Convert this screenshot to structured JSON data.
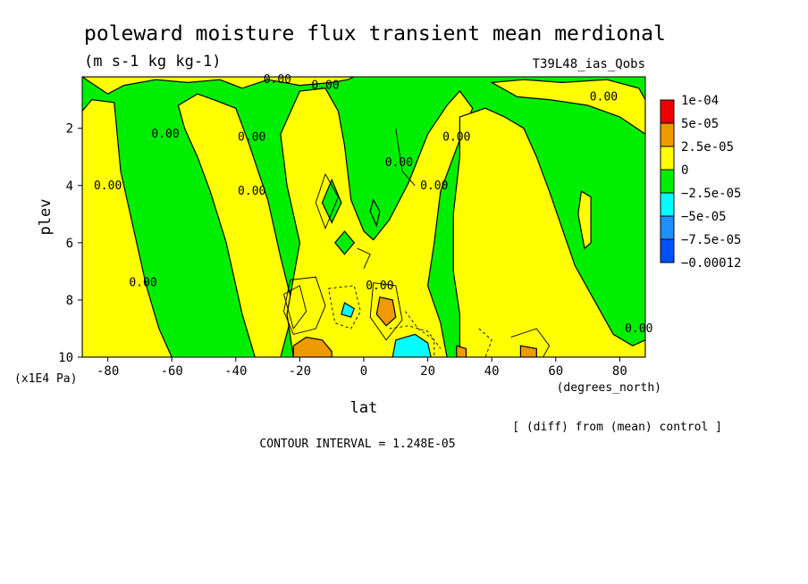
{
  "chart_data": {
    "type": "heatmap",
    "title": "poleward moisture flux transient mean merdional",
    "units_label": "(m s-1 kg kg-1)",
    "run_label": "T39L48_ias_Qobs",
    "xlabel": "lat",
    "x_units": "(degrees_north)",
    "ylabel": "plev",
    "y_units": "(x1E4 Pa)",
    "xlim": [
      -88,
      88
    ],
    "ylim": [
      10,
      0.2
    ],
    "x_ticks": [
      "-80",
      "-60",
      "-40",
      "-20",
      "0",
      "20",
      "40",
      "60",
      "80"
    ],
    "x_tick_values": [
      -80,
      -60,
      -40,
      -20,
      0,
      20,
      40,
      60,
      80
    ],
    "y_ticks": [
      "2",
      "4",
      "6",
      "8",
      "10"
    ],
    "y_tick_values": [
      2,
      4,
      6,
      8,
      10
    ],
    "legend": {
      "placement": "right",
      "labels": [
        "1e-04",
        "5e-05",
        "2.5e-05",
        "0",
        "−2.5e-05",
        "−5e-05",
        "−7.5e-05",
        "−0.00012"
      ],
      "colors": [
        "#ee0000",
        "#ee9a00",
        "#ffff00",
        "#00ee00",
        "#00ffff",
        "#1e90ff",
        "#0050ff"
      ]
    },
    "contour_labels": [
      "0.00",
      "0.00",
      "0.00",
      "0.00",
      "0.00",
      "0.00",
      "0.00",
      "0.00",
      "0.00",
      "0.00",
      "0.00",
      "0.00",
      "0.00"
    ],
    "footnote": "[ (diff) from (mean) control ]",
    "contour_interval": "CONTOUR INTERVAL = 1.248E-05",
    "regions": [
      {
        "kind": "positive",
        "level": "0 to 2.5e-05",
        "color": "#ffff00",
        "points": [
          [
            -88,
            0.2
          ],
          [
            -80,
            0.8
          ],
          [
            -75,
            0.5
          ],
          [
            -65,
            0.3
          ],
          [
            -55,
            0.4
          ],
          [
            -45,
            0.3
          ],
          [
            -38,
            0.6
          ],
          [
            -30,
            0.3
          ],
          [
            -20,
            0.5
          ],
          [
            -10,
            0.4
          ],
          [
            -5,
            0.3
          ],
          [
            -3,
            0.2
          ]
        ]
      },
      {
        "kind": "positive",
        "level": "0 to 2.5e-05",
        "color": "#ffff00",
        "points": [
          [
            -88,
            1.4
          ],
          [
            -85,
            1.0
          ],
          [
            -78,
            1.1
          ],
          [
            -76,
            3.5
          ],
          [
            -72,
            5.5
          ],
          [
            -68,
            7.5
          ],
          [
            -64,
            9.0
          ],
          [
            -60,
            10.0
          ],
          [
            -88,
            10.0
          ]
        ]
      },
      {
        "kind": "positive",
        "level": "0 to 2.5e-05",
        "color": "#ffff00",
        "points": [
          [
            -58,
            1.2
          ],
          [
            -52,
            0.8
          ],
          [
            -47,
            1.0
          ],
          [
            -40,
            1.3
          ],
          [
            -36,
            2.5
          ],
          [
            -30,
            4.5
          ],
          [
            -26,
            6.5
          ],
          [
            -22,
            8.3
          ],
          [
            -26,
            10.0
          ],
          [
            -34,
            10.0
          ],
          [
            -38,
            8.5
          ],
          [
            -43,
            6.0
          ],
          [
            -48,
            4.2
          ],
          [
            -52,
            3.0
          ],
          [
            -56,
            2.0
          ]
        ]
      },
      {
        "kind": "positive",
        "level": "0 to 2.5e-05",
        "color": "#ffff00",
        "points": [
          [
            -20,
            0.7
          ],
          [
            -12,
            0.6
          ],
          [
            -8,
            1.4
          ],
          [
            -6,
            2.6
          ],
          [
            -4,
            4.5
          ],
          [
            0,
            5.6
          ],
          [
            3,
            5.9
          ],
          [
            8,
            5.2
          ],
          [
            14,
            3.9
          ],
          [
            20,
            2.2
          ],
          [
            26,
            1.2
          ],
          [
            30,
            0.7
          ],
          [
            34,
            1.3
          ],
          [
            30,
            2.4
          ],
          [
            24,
            4.2
          ],
          [
            22,
            6.0
          ],
          [
            20,
            7.5
          ],
          [
            24,
            8.8
          ],
          [
            26,
            10.0
          ],
          [
            -22,
            10.0
          ],
          [
            -24,
            8.5
          ],
          [
            -20,
            6.0
          ],
          [
            -24,
            4.0
          ],
          [
            -26,
            2.2
          ],
          [
            -22,
            1.2
          ]
        ]
      },
      {
        "kind": "positive",
        "level": "0 to 2.5e-05",
        "color": "#ffff00",
        "points": [
          [
            30,
            1.6
          ],
          [
            38,
            1.3
          ],
          [
            44,
            1.6
          ],
          [
            50,
            2.0
          ],
          [
            54,
            3.0
          ],
          [
            58,
            4.2
          ],
          [
            62,
            5.5
          ],
          [
            66,
            6.8
          ],
          [
            72,
            8.0
          ],
          [
            78,
            9.2
          ],
          [
            84,
            9.6
          ],
          [
            88,
            9.4
          ],
          [
            88,
            10.0
          ],
          [
            30,
            10.0
          ],
          [
            30,
            8.5
          ],
          [
            28,
            7.0
          ],
          [
            28,
            5.0
          ],
          [
            30,
            3.0
          ]
        ]
      },
      {
        "kind": "positive",
        "level": "0 to 2.5e-05",
        "color": "#ffff00",
        "points": [
          [
            40,
            0.4
          ],
          [
            50,
            0.3
          ],
          [
            62,
            0.4
          ],
          [
            76,
            0.3
          ],
          [
            86,
            0.6
          ],
          [
            88,
            1.0
          ],
          [
            88,
            2.2
          ],
          [
            80,
            1.6
          ],
          [
            70,
            1.2
          ],
          [
            58,
            1.0
          ],
          [
            48,
            0.9
          ]
        ]
      },
      {
        "kind": "positive",
        "level": "0 to 2.5e-05",
        "color": "#ffff00",
        "points": [
          [
            68,
            4.2
          ],
          [
            71,
            4.4
          ],
          [
            71,
            6.0
          ],
          [
            69,
            6.2
          ],
          [
            67,
            5.0
          ]
        ]
      },
      {
        "kind": "negative",
        "level": "-2.5e-05 to 0",
        "color": "#00ee00",
        "points": [
          [
            -10,
            3.8
          ],
          [
            -7,
            4.6
          ],
          [
            -10,
            5.3
          ],
          [
            -13,
            4.6
          ]
        ]
      },
      {
        "kind": "negative",
        "level": "-2.5e-05 to 0",
        "color": "#00ee00",
        "points": [
          [
            3,
            4.5
          ],
          [
            5,
            4.9
          ],
          [
            4,
            5.4
          ],
          [
            2,
            4.9
          ]
        ]
      },
      {
        "kind": "negative",
        "level": "-2.5e-05 to 0",
        "color": "#00ee00",
        "points": [
          [
            -6,
            5.6
          ],
          [
            -3,
            6.0
          ],
          [
            -6,
            6.4
          ],
          [
            -9,
            6.0
          ]
        ]
      },
      {
        "kind": "positive",
        "level": "2.5e-05 to 5e-05",
        "color": "#ee9a00",
        "points": [
          [
            -22,
            9.6
          ],
          [
            -18,
            9.3
          ],
          [
            -13,
            9.4
          ],
          [
            -10,
            9.8
          ],
          [
            -10,
            10.0
          ],
          [
            -22,
            10.0
          ]
        ]
      },
      {
        "kind": "positive",
        "level": "2.5e-05 to 5e-05",
        "color": "#ee9a00",
        "points": [
          [
            5,
            7.9
          ],
          [
            9,
            8.0
          ],
          [
            10,
            8.6
          ],
          [
            7,
            8.9
          ],
          [
            4,
            8.5
          ]
        ]
      },
      {
        "kind": "positive",
        "level": "2.5e-05 to 5e-05",
        "color": "#ee9a00",
        "points": [
          [
            29,
            9.6
          ],
          [
            32,
            9.7
          ],
          [
            32,
            10.0
          ],
          [
            29,
            10.0
          ]
        ]
      },
      {
        "kind": "positive",
        "level": "2.5e-05 to 5e-05",
        "color": "#ee9a00",
        "points": [
          [
            49,
            9.6
          ],
          [
            54,
            9.7
          ],
          [
            54,
            10.0
          ],
          [
            49,
            10.0
          ]
        ]
      },
      {
        "kind": "negative",
        "level": "-5e-05 to -2.5e-05",
        "color": "#00ffff",
        "points": [
          [
            -6,
            8.1
          ],
          [
            -3,
            8.3
          ],
          [
            -4,
            8.6
          ],
          [
            -7,
            8.5
          ]
        ]
      },
      {
        "kind": "negative",
        "level": "-5e-05 to -2.5e-05",
        "color": "#00ffff",
        "points": [
          [
            10,
            9.4
          ],
          [
            16,
            9.2
          ],
          [
            20,
            9.5
          ],
          [
            21,
            10.0
          ],
          [
            9,
            10.0
          ]
        ]
      }
    ]
  }
}
